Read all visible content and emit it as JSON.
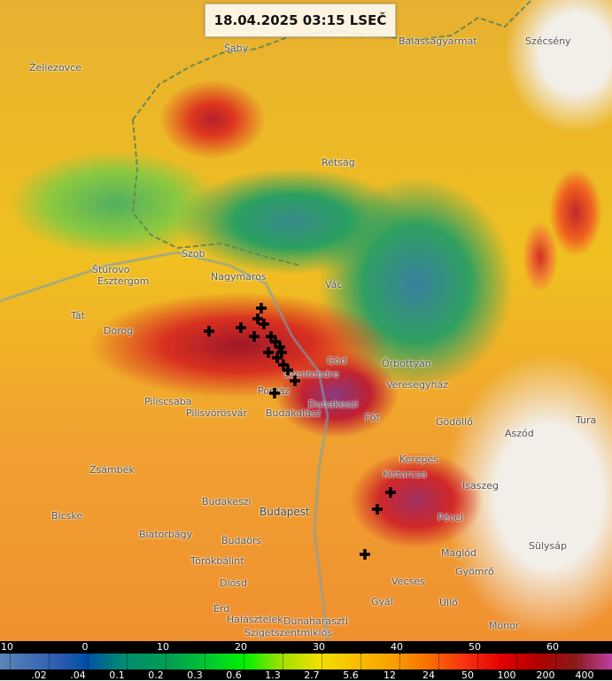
{
  "timestamp": "18.04.2025 03:15 LSEČ",
  "places": [
    {
      "name": "Šahy"
    },
    {
      "name": "Balassagyarmat"
    },
    {
      "name": "Szécsény"
    },
    {
      "name": "Želiezovce"
    },
    {
      "name": "Rétság"
    },
    {
      "name": "Szob"
    },
    {
      "name": "Štúrovo"
    },
    {
      "name": "Esztergom"
    },
    {
      "name": "Nagymaros"
    },
    {
      "name": "Vác"
    },
    {
      "name": "Tát"
    },
    {
      "name": "Dorog"
    },
    {
      "name": "Göd"
    },
    {
      "name": "Szentendre"
    },
    {
      "name": "Őrbottyán"
    },
    {
      "name": "Veresegyház"
    },
    {
      "name": "Aszód"
    },
    {
      "name": "Piliscsaba"
    },
    {
      "name": "Pilisvörösvár"
    },
    {
      "name": "Pomáz"
    },
    {
      "name": "Budakalász"
    },
    {
      "name": "Dunakeszi"
    },
    {
      "name": "Fót"
    },
    {
      "name": "Gödöllő"
    },
    {
      "name": "Tura"
    },
    {
      "name": "Zsámbék"
    },
    {
      "name": "Kerepes"
    },
    {
      "name": "Kistarcsa"
    },
    {
      "name": "Isaszeg"
    },
    {
      "name": "Budakeszi"
    },
    {
      "name": "Budapest"
    },
    {
      "name": "Pécel"
    },
    {
      "name": "Bicske"
    },
    {
      "name": "Biatorbágy"
    },
    {
      "name": "Budaörs"
    },
    {
      "name": "Sülysáp"
    },
    {
      "name": "Törökbálint"
    },
    {
      "name": "Maglód"
    },
    {
      "name": "Gyömrő"
    },
    {
      "name": "Diósd"
    },
    {
      "name": "Vecses"
    },
    {
      "name": "Gyál"
    },
    {
      "name": "Üllő"
    },
    {
      "name": "Érd"
    },
    {
      "name": "Halásztelek"
    },
    {
      "name": "Dunaharaszti"
    },
    {
      "name": "Szigetszentmiklós"
    },
    {
      "name": "Monor"
    }
  ],
  "legend": {
    "dbz_labels": [
      "10",
      "0",
      "10",
      "20",
      "30",
      "40",
      "50",
      "60"
    ],
    "rate_labels": [
      ".02",
      ".04",
      "0.1",
      "0.2",
      "0.3",
      "0.6",
      "1.3",
      "2.7",
      "5.6",
      "12",
      "24",
      "50",
      "100",
      "200",
      "400"
    ]
  }
}
